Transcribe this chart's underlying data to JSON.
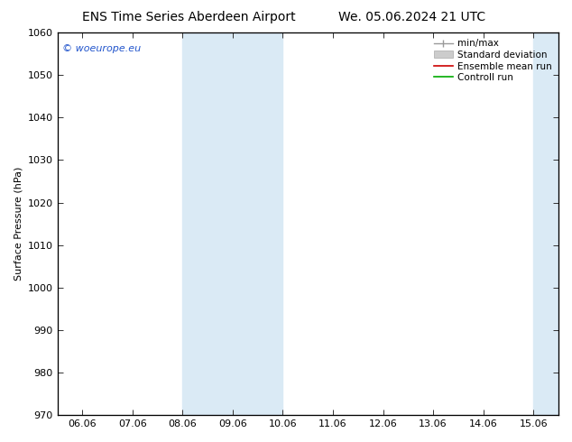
{
  "title_left": "ENS Time Series Aberdeen Airport",
  "title_right": "We. 05.06.2024 21 UTC",
  "ylabel": "Surface Pressure (hPa)",
  "ylim": [
    970,
    1060
  ],
  "yticks": [
    970,
    980,
    990,
    1000,
    1010,
    1020,
    1030,
    1040,
    1050,
    1060
  ],
  "x_labels": [
    "06.06",
    "07.06",
    "08.06",
    "09.06",
    "10.06",
    "11.06",
    "12.06",
    "13.06",
    "14.06",
    "15.06"
  ],
  "x_positions": [
    0,
    1,
    2,
    3,
    4,
    5,
    6,
    7,
    8,
    9
  ],
  "xlim": [
    -0.5,
    9.5
  ],
  "shade_color": "#daeaf5",
  "background_color": "#ffffff",
  "watermark": "© woeurope.eu",
  "title_fontsize": 10,
  "axis_fontsize": 8,
  "tick_fontsize": 8,
  "legend_fontsize": 7.5,
  "band_ranges": [
    [
      2.0,
      3.0
    ],
    [
      3.0,
      4.0
    ],
    [
      9.0,
      9.5
    ]
  ],
  "watermark_color": "#2255cc"
}
